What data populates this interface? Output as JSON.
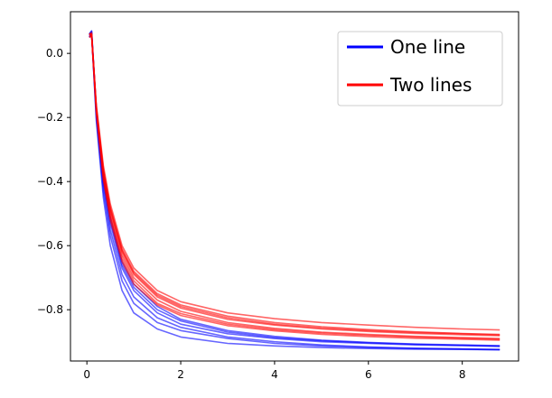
{
  "chart_data": {
    "type": "line",
    "title": "",
    "xlabel": "",
    "ylabel": "",
    "xlim": [
      -0.35,
      9.2
    ],
    "ylim": [
      -0.96,
      0.13
    ],
    "x_ticks": [
      0,
      2,
      4,
      6,
      8
    ],
    "y_ticks": [
      0.0,
      -0.2,
      -0.4,
      -0.6,
      -0.8
    ],
    "x_tick_labels": [
      "0",
      "2",
      "4",
      "6",
      "8"
    ],
    "y_tick_labels": [
      "0.0",
      "−0.2",
      "−0.4",
      "−0.6",
      "−0.8"
    ],
    "grid": false,
    "legend_position": "top-right",
    "legend": [
      {
        "label": "One line",
        "color": "#0000ff"
      },
      {
        "label": "Two lines",
        "color": "#ff0000"
      }
    ],
    "series": [
      {
        "group": "One line",
        "color": "#0000ff",
        "x": [
          0.05,
          0.1,
          0.2,
          0.35,
          0.5,
          0.75,
          1,
          1.5,
          2,
          3,
          4,
          5,
          6,
          7,
          8,
          8.8
        ],
        "y": [
          0.06,
          0.07,
          -0.18,
          -0.4,
          -0.53,
          -0.67,
          -0.74,
          -0.81,
          -0.845,
          -0.875,
          -0.89,
          -0.9,
          -0.905,
          -0.91,
          -0.912,
          -0.915
        ]
      },
      {
        "group": "One line",
        "color": "#0000ff",
        "x": [
          0.05,
          0.1,
          0.2,
          0.35,
          0.5,
          0.75,
          1,
          1.5,
          2,
          3,
          4,
          5,
          6,
          7,
          8,
          8.8
        ],
        "y": [
          0.05,
          0.06,
          -0.2,
          -0.43,
          -0.57,
          -0.71,
          -0.78,
          -0.84,
          -0.865,
          -0.89,
          -0.905,
          -0.913,
          -0.918,
          -0.921,
          -0.923,
          -0.925
        ]
      },
      {
        "group": "One line",
        "color": "#0000ff",
        "x": [
          0.05,
          0.1,
          0.2,
          0.35,
          0.5,
          0.75,
          1,
          1.5,
          2,
          3,
          4,
          5,
          6,
          7,
          8,
          8.8
        ],
        "y": [
          0.06,
          0.07,
          -0.17,
          -0.38,
          -0.51,
          -0.65,
          -0.72,
          -0.79,
          -0.83,
          -0.865,
          -0.883,
          -0.895,
          -0.902,
          -0.907,
          -0.91,
          -0.912
        ]
      },
      {
        "group": "One line",
        "color": "#0000ff",
        "x": [
          0.05,
          0.1,
          0.2,
          0.35,
          0.5,
          0.75,
          1,
          1.5,
          2,
          3,
          4,
          5,
          6,
          7,
          8,
          8.8
        ],
        "y": [
          0.05,
          0.06,
          -0.19,
          -0.41,
          -0.55,
          -0.69,
          -0.76,
          -0.825,
          -0.855,
          -0.885,
          -0.9,
          -0.91,
          -0.916,
          -0.92,
          -0.922,
          -0.924
        ]
      },
      {
        "group": "One line",
        "color": "#0000ff",
        "x": [
          0.05,
          0.1,
          0.2,
          0.35,
          0.5,
          0.75,
          1,
          1.5,
          2,
          3,
          4,
          5,
          6,
          7,
          8,
          8.8
        ],
        "y": [
          0.06,
          0.065,
          -0.21,
          -0.45,
          -0.6,
          -0.74,
          -0.81,
          -0.86,
          -0.885,
          -0.905,
          -0.913,
          -0.918,
          -0.921,
          -0.923,
          -0.924,
          -0.925
        ]
      },
      {
        "group": "One line",
        "color": "#0000ff",
        "x": [
          0.05,
          0.1,
          0.2,
          0.35,
          0.5,
          0.75,
          1,
          1.5,
          2,
          3,
          4,
          5,
          6,
          7,
          8,
          8.8
        ],
        "y": [
          0.055,
          0.065,
          -0.175,
          -0.39,
          -0.52,
          -0.66,
          -0.73,
          -0.8,
          -0.835,
          -0.87,
          -0.887,
          -0.897,
          -0.903,
          -0.908,
          -0.911,
          -0.913
        ]
      },
      {
        "group": "Two lines",
        "color": "#ff0000",
        "x": [
          0.05,
          0.1,
          0.2,
          0.35,
          0.5,
          0.75,
          1,
          1.5,
          2,
          3,
          4,
          5,
          6,
          7,
          8,
          8.8
        ],
        "y": [
          0.06,
          0.06,
          -0.17,
          -0.37,
          -0.49,
          -0.62,
          -0.69,
          -0.76,
          -0.795,
          -0.83,
          -0.848,
          -0.86,
          -0.868,
          -0.874,
          -0.878,
          -0.881
        ]
      },
      {
        "group": "Two lines",
        "color": "#ff0000",
        "x": [
          0.05,
          0.1,
          0.2,
          0.35,
          0.5,
          0.75,
          1,
          1.5,
          2,
          3,
          4,
          5,
          6,
          7,
          8,
          8.8
        ],
        "y": [
          0.05,
          0.055,
          -0.16,
          -0.35,
          -0.47,
          -0.6,
          -0.67,
          -0.74,
          -0.775,
          -0.81,
          -0.828,
          -0.84,
          -0.848,
          -0.855,
          -0.86,
          -0.863
        ]
      },
      {
        "group": "Two lines",
        "color": "#ff0000",
        "x": [
          0.05,
          0.1,
          0.2,
          0.35,
          0.5,
          0.75,
          1,
          1.5,
          2,
          3,
          4,
          5,
          6,
          7,
          8,
          8.8
        ],
        "y": [
          0.06,
          0.06,
          -0.175,
          -0.38,
          -0.5,
          -0.63,
          -0.7,
          -0.77,
          -0.805,
          -0.84,
          -0.858,
          -0.87,
          -0.877,
          -0.883,
          -0.887,
          -0.89
        ]
      },
      {
        "group": "Two lines",
        "color": "#ff0000",
        "x": [
          0.05,
          0.1,
          0.2,
          0.35,
          0.5,
          0.75,
          1,
          1.5,
          2,
          3,
          4,
          5,
          6,
          7,
          8,
          8.8
        ],
        "y": [
          0.055,
          0.06,
          -0.165,
          -0.36,
          -0.48,
          -0.61,
          -0.68,
          -0.75,
          -0.785,
          -0.82,
          -0.84,
          -0.853,
          -0.862,
          -0.869,
          -0.874,
          -0.877
        ]
      },
      {
        "group": "Two lines",
        "color": "#ff0000",
        "x": [
          0.05,
          0.1,
          0.2,
          0.35,
          0.5,
          0.75,
          1,
          1.5,
          2,
          3,
          4,
          5,
          6,
          7,
          8,
          8.8
        ],
        "y": [
          0.06,
          0.065,
          -0.18,
          -0.39,
          -0.51,
          -0.64,
          -0.71,
          -0.78,
          -0.812,
          -0.845,
          -0.862,
          -0.873,
          -0.88,
          -0.885,
          -0.889,
          -0.892
        ]
      },
      {
        "group": "Two lines",
        "color": "#ff0000",
        "x": [
          0.05,
          0.1,
          0.2,
          0.35,
          0.5,
          0.75,
          1,
          1.5,
          2,
          3,
          4,
          5,
          6,
          7,
          8,
          8.8
        ],
        "y": [
          0.05,
          0.055,
          -0.17,
          -0.365,
          -0.485,
          -0.615,
          -0.685,
          -0.755,
          -0.79,
          -0.825,
          -0.845,
          -0.857,
          -0.865,
          -0.871,
          -0.875,
          -0.879
        ]
      },
      {
        "group": "Two lines",
        "color": "#ff0000",
        "x": [
          0.05,
          0.1,
          0.2,
          0.35,
          0.5,
          0.75,
          1,
          1.5,
          2,
          3,
          4,
          5,
          6,
          7,
          8,
          8.8
        ],
        "y": [
          0.06,
          0.06,
          -0.185,
          -0.395,
          -0.52,
          -0.65,
          -0.72,
          -0.785,
          -0.818,
          -0.85,
          -0.866,
          -0.877,
          -0.884,
          -0.889,
          -0.892,
          -0.895
        ]
      }
    ]
  }
}
